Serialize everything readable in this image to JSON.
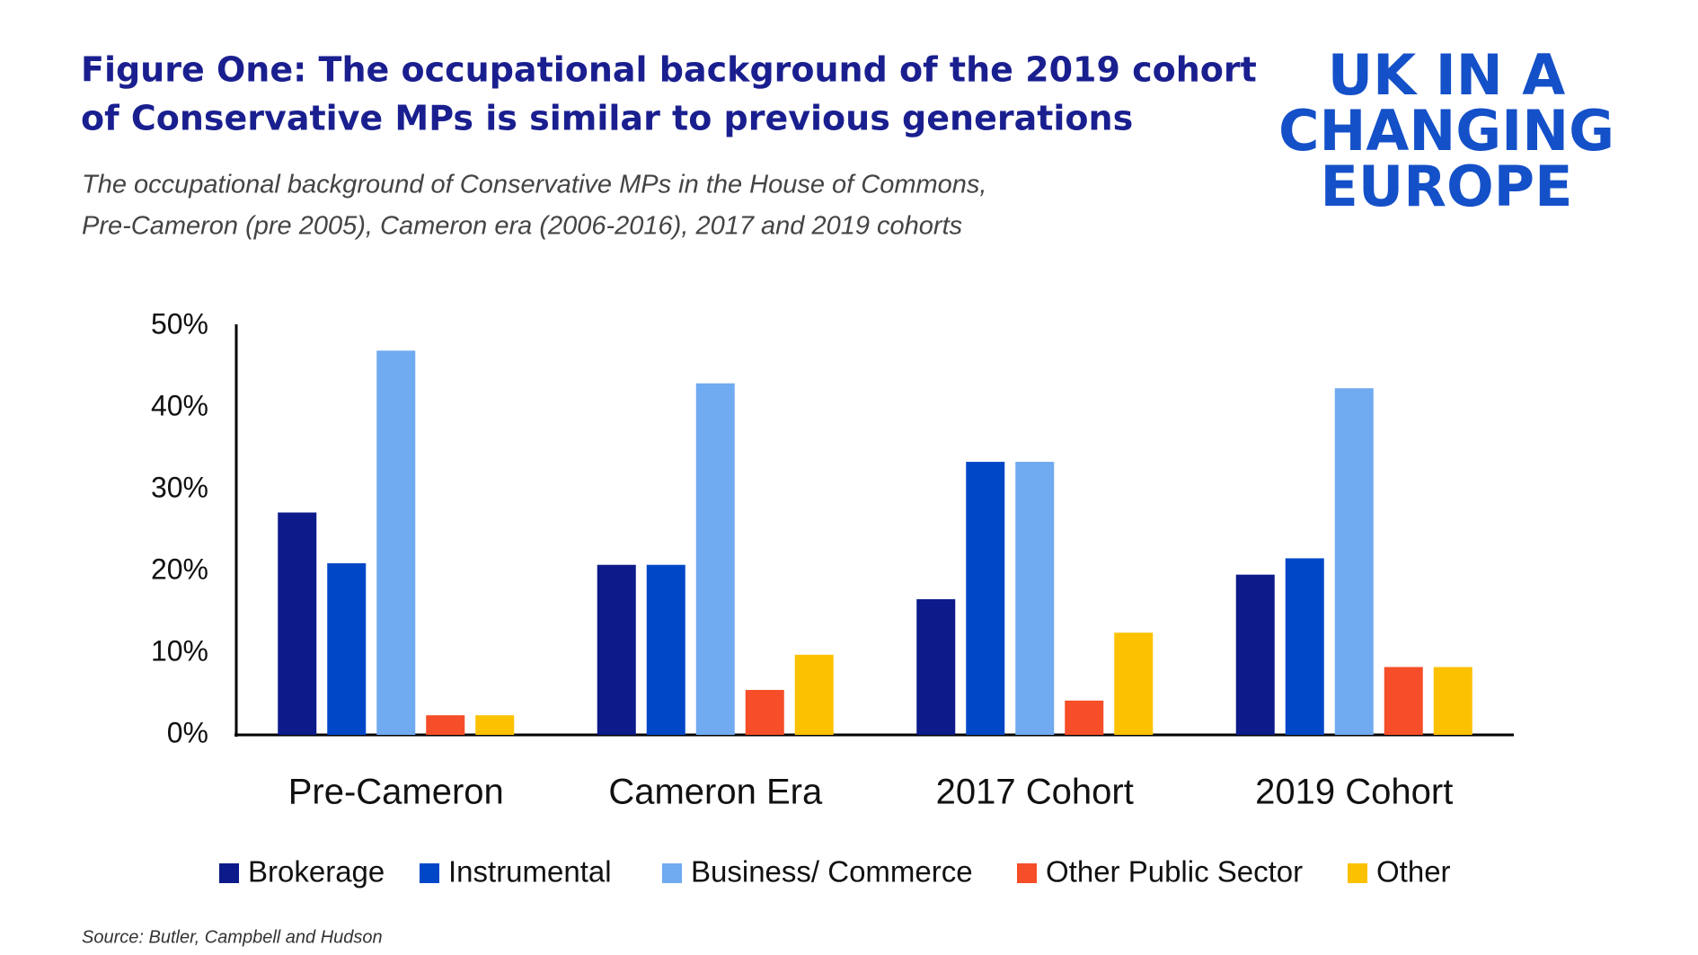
{
  "chart_data": {
    "type": "bar",
    "title": [
      "Figure One: The occupational background of the 2019 cohort",
      "of Conservative MPs is similar to previous generations"
    ],
    "subtitle": [
      "The occupational background of Conservative MPs in the House of Commons,",
      "Pre-Cameron (pre 2005), Cameron era (2006-2016), 2017 and  2019 cohorts"
    ],
    "logo": [
      "UK IN A",
      "CHANGING",
      "EUROPE"
    ],
    "source": "Source: Butler, Campbell and Hudson",
    "categories": [
      "Pre-Cameron",
      "Cameron Era",
      "2017 Cohort",
      "2019 Cohort"
    ],
    "series": [
      {
        "name": "Brokerage",
        "color": "#0c1a8a",
        "values": [
          27.2,
          20.8,
          16.6,
          19.6
        ]
      },
      {
        "name": "Instrumental",
        "color": "#0047c8",
        "values": [
          21.0,
          20.8,
          33.4,
          21.6
        ]
      },
      {
        "name": "Business/ Commerce",
        "color": "#70aaf0",
        "values": [
          47.0,
          43.0,
          33.4,
          42.4
        ]
      },
      {
        "name": "Other Public Sector",
        "color": "#f54e28",
        "values": [
          2.4,
          5.5,
          4.2,
          8.3
        ]
      },
      {
        "name": "Other",
        "color": "#fcc100",
        "values": [
          2.4,
          9.8,
          12.5,
          8.3
        ]
      }
    ],
    "ylim": [
      0,
      50
    ],
    "yticks": [
      {
        "value": 0,
        "label": "0%"
      },
      {
        "value": 10,
        "label": "10%"
      },
      {
        "value": 20,
        "label": "20%"
      },
      {
        "value": 30,
        "label": "30%"
      },
      {
        "value": 40,
        "label": "40%"
      },
      {
        "value": 50,
        "label": "50%"
      }
    ],
    "grid": false
  }
}
